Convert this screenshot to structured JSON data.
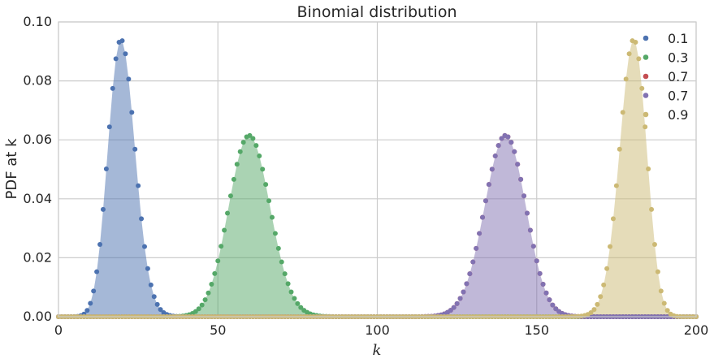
{
  "chart_data": {
    "type": "scatter",
    "title": "Binomial distribution",
    "xlabel": "k",
    "ylabel": "PDF at k",
    "xlim": [
      0,
      200
    ],
    "ylim": [
      0,
      0.1
    ],
    "x_ticks": [
      "0",
      "50",
      "100",
      "150",
      "200"
    ],
    "y_ticks": [
      "0.00",
      "0.02",
      "0.04",
      "0.06",
      "0.08",
      "0.10"
    ],
    "grid": true,
    "legend_position": "top-right",
    "distribution": {
      "n": 200,
      "k_min": 0,
      "k_max": 200
    },
    "series": [
      {
        "name": "0.1",
        "p": 0.1,
        "color": "#4c72b0",
        "fill": true
      },
      {
        "name": "0.3",
        "p": 0.3,
        "color": "#55a868",
        "fill": true
      },
      {
        "name": "0.7",
        "p": 0.7,
        "color": "#c44e52",
        "fill": false
      },
      {
        "name": "0.7",
        "p": 0.7,
        "color": "#8172b2",
        "fill": true
      },
      {
        "name": "0.9",
        "p": 0.9,
        "color": "#ccb974",
        "fill": true
      }
    ]
  }
}
